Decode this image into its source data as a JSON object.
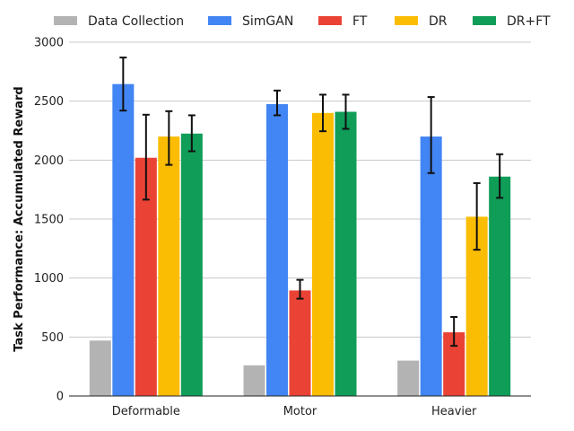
{
  "chart_data": {
    "type": "bar",
    "ylabel": "Task Performance: Accumulated Reward",
    "xlabel": "",
    "ylim": [
      0,
      3000
    ],
    "yticks": [
      0,
      500,
      1000,
      1500,
      2000,
      2500,
      3000
    ],
    "grid": true,
    "legend_position": "top",
    "categories": [
      "Deformable",
      "Motor",
      "Heavier"
    ],
    "series": [
      {
        "name": "Data Collection",
        "color": "#b3b3b3",
        "values": [
          470,
          260,
          300
        ],
        "errors": [
          null,
          null,
          null
        ]
      },
      {
        "name": "SimGAN",
        "color": "#4285f4",
        "values": [
          2645,
          2475,
          2200
        ],
        "errors": [
          [
            2420,
            2870
          ],
          [
            2380,
            2590
          ],
          [
            1890,
            2535
          ]
        ]
      },
      {
        "name": "FT",
        "color": "#ea4335",
        "values": [
          2020,
          895,
          540
        ],
        "errors": [
          [
            1665,
            2385
          ],
          [
            825,
            985
          ],
          [
            425,
            670
          ]
        ]
      },
      {
        "name": "DR",
        "color": "#fbbc04",
        "values": [
          2200,
          2400,
          1520
        ],
        "errors": [
          [
            1960,
            2415
          ],
          [
            2245,
            2555
          ],
          [
            1240,
            1805
          ]
        ]
      },
      {
        "name": "DR+FT",
        "color": "#0f9d58",
        "values": [
          2225,
          2410,
          1860
        ],
        "errors": [
          [
            2075,
            2380
          ],
          [
            2265,
            2555
          ],
          [
            1680,
            2050
          ]
        ]
      }
    ]
  }
}
